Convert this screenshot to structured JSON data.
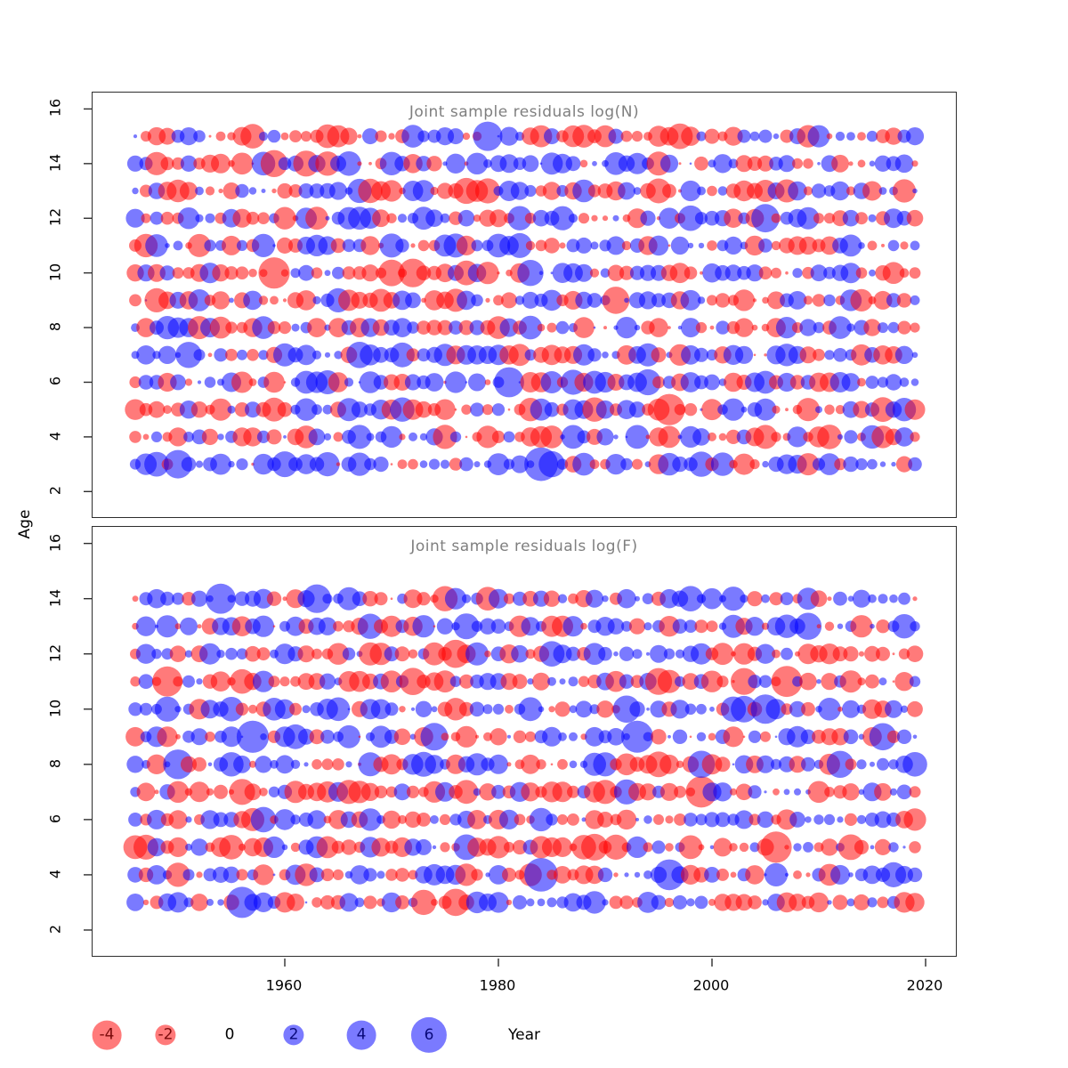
{
  "figure": {
    "ylabel": "Age",
    "xlabel": "Year"
  },
  "chart_data": {
    "type": "bubble",
    "description": "Two stacked panels of model residual bubbles by Age (y) and Year (x); bubble area encodes residual magnitude, red = negative, blue = positive. Individual residual values are not legible at screenshot resolution; bubbles are reproduced from the generator spec below.",
    "panels": [
      {
        "id": "logN",
        "title": "Joint sample residuals log(N)",
        "ages": [
          3,
          4,
          5,
          6,
          7,
          8,
          9,
          10,
          11,
          12,
          13,
          14,
          15
        ],
        "year_start": 1946,
        "year_end": 2019,
        "seed": 411
      },
      {
        "id": "logF",
        "title": "Joint sample residuals log(F)",
        "ages": [
          3,
          4,
          5,
          6,
          7,
          8,
          9,
          10,
          11,
          12,
          13,
          14
        ],
        "year_start": 1946,
        "year_end": 2019,
        "seed": 907
      }
    ],
    "axes": {
      "xlim": [
        1942,
        2023
      ],
      "ylim": [
        1.0,
        16.6
      ],
      "xticks": [
        1960,
        1980,
        2000,
        2020
      ],
      "yticks": [
        2,
        4,
        6,
        8,
        10,
        12,
        14,
        16
      ],
      "grid": false
    },
    "encoding": {
      "size_rule": "radius_px = size_scale * sqrt(abs(value))",
      "size_scale": 8.2,
      "value_range": [
        -4.6,
        6.3
      ],
      "negative_color": "#ff0000",
      "positive_color": "#0000ff",
      "opacity": 0.52
    },
    "legend": {
      "values": [
        -4,
        -2,
        0,
        2,
        4,
        6
      ],
      "labels": [
        "-4",
        "-2",
        "0",
        "2",
        "4",
        "6"
      ],
      "fills": [
        "rgba(255,0,0,0.52)",
        "rgba(255,0,0,0.52)",
        "none",
        "rgba(0,0,255,0.52)",
        "rgba(0,0,255,0.52)",
        "rgba(0,0,255,0.52)"
      ],
      "text_colors": [
        "#7a0a0a",
        "#7a0a0a",
        "#000000",
        "#0a0a7a",
        "#0a0a7a",
        "#0a0a7a"
      ]
    }
  }
}
